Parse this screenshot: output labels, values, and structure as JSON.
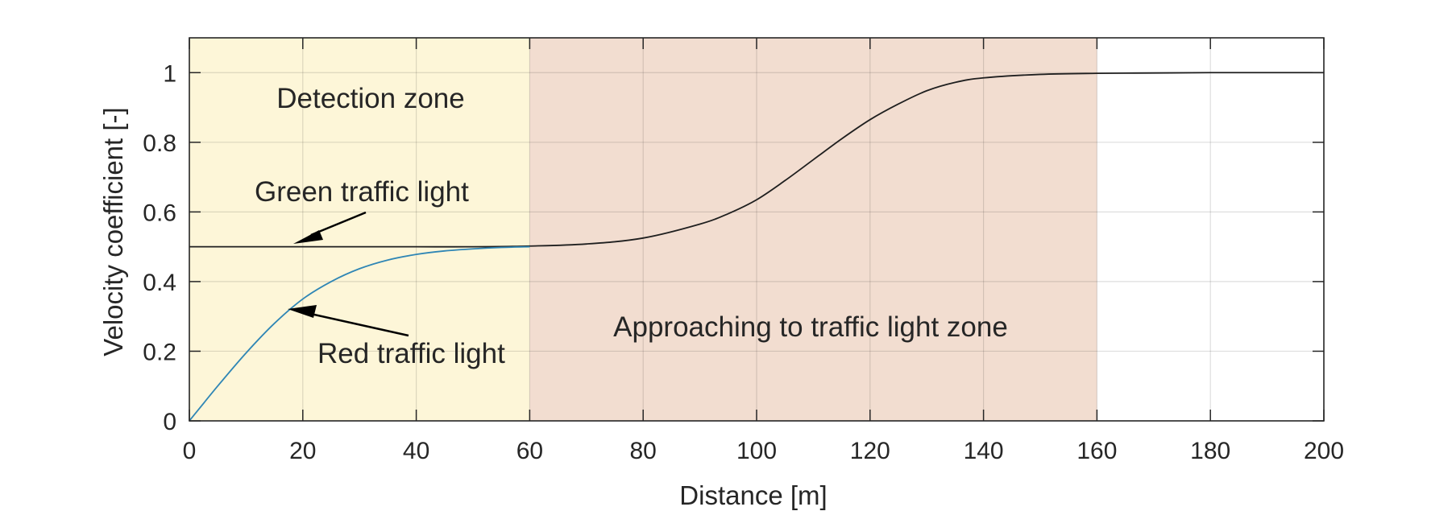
{
  "chart_data": {
    "type": "line",
    "xlabel": "Distance [m]",
    "ylabel": "Velocity coefficient [-]",
    "xlim": [
      0,
      200
    ],
    "ylim": [
      0,
      1.1
    ],
    "xticks": [
      0,
      20,
      40,
      60,
      80,
      100,
      120,
      140,
      160,
      180,
      200
    ],
    "yticks": [
      0,
      0.2,
      0.4,
      0.6,
      0.8,
      1
    ],
    "xtick_labels": [
      "0",
      "20",
      "40",
      "60",
      "80",
      "100",
      "120",
      "140",
      "160",
      "180",
      "200"
    ],
    "ytick_labels": [
      "0",
      "0.2",
      "0.4",
      "0.6",
      "0.8",
      "1"
    ],
    "grid": true,
    "zones": [
      {
        "label": "Detection zone",
        "x_range": [
          0,
          60
        ],
        "color": "#fdf6d8"
      },
      {
        "label": "Approaching to traffic light zone",
        "x_range": [
          60,
          160
        ],
        "color": "#f2ddd0"
      }
    ],
    "series": [
      {
        "color": "#1f1f1f",
        "x": [
          0,
          10,
          20,
          30,
          40,
          50,
          60,
          70,
          80,
          90,
          95,
          100,
          105,
          110,
          115,
          120,
          125,
          130,
          135,
          140,
          150,
          160,
          170,
          180,
          190,
          200
        ],
        "y": [
          0.5,
          0.5,
          0.5,
          0.5,
          0.5,
          0.5,
          0.502,
          0.508,
          0.525,
          0.565,
          0.595,
          0.635,
          0.69,
          0.75,
          0.81,
          0.865,
          0.91,
          0.948,
          0.972,
          0.985,
          0.995,
          0.998,
          0.999,
          1.0,
          1.0,
          1.0
        ]
      },
      {
        "color": "#2f86b5",
        "x": [
          0,
          5,
          10,
          15,
          20,
          25,
          30,
          35,
          40,
          45,
          50,
          55,
          60
        ],
        "y": [
          0,
          0.1,
          0.195,
          0.28,
          0.35,
          0.4,
          0.437,
          0.462,
          0.478,
          0.488,
          0.494,
          0.498,
          0.5
        ]
      }
    ],
    "annotations": [
      {
        "text": "Detection zone"
      },
      {
        "text": "Green traffic light"
      },
      {
        "text": "Red traffic light"
      },
      {
        "text": "Approaching to traffic light zone"
      }
    ]
  }
}
